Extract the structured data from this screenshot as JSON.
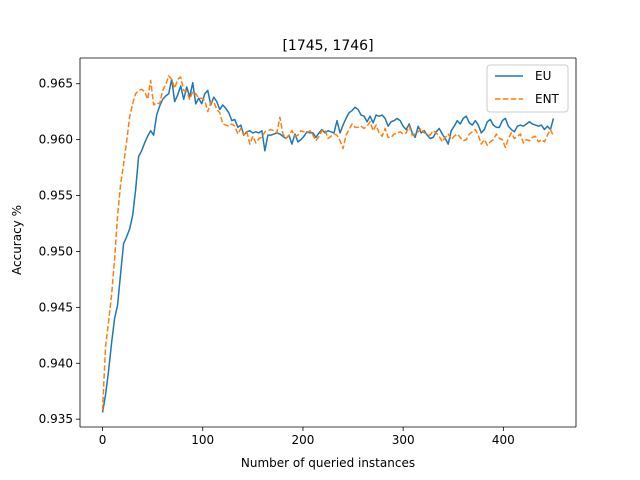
{
  "chart_data": {
    "type": "line",
    "title": "[1745, 1746]",
    "xlabel": "Number of queried instances",
    "ylabel": "Accuracy %",
    "xlim": [
      -22.5,
      472.5
    ],
    "ylim": [
      0.9343,
      0.9673
    ],
    "xticks": [
      0,
      100,
      200,
      300,
      400
    ],
    "xtick_labels": [
      "0",
      "100",
      "200",
      "300",
      "400"
    ],
    "yticks": [
      0.935,
      0.94,
      0.945,
      0.95,
      0.955,
      0.96,
      0.965
    ],
    "ytick_labels": [
      "0.935",
      "0.940",
      "0.945",
      "0.950",
      "0.955",
      "0.960",
      "0.965"
    ],
    "grid": false,
    "legend_position": "top-right",
    "series": [
      {
        "name": "EU",
        "color": "#1f77b4",
        "style": "solid",
        "x": [
          0,
          3,
          6,
          9,
          12,
          15,
          18,
          21,
          24,
          27,
          30,
          33,
          36,
          39,
          42,
          45,
          48,
          51,
          54,
          57,
          60,
          63,
          66,
          69,
          72,
          75,
          78,
          81,
          84,
          87,
          90,
          93,
          96,
          99,
          102,
          105,
          108,
          111,
          114,
          117,
          120,
          123,
          126,
          129,
          132,
          135,
          138,
          141,
          144,
          147,
          150,
          153,
          156,
          159,
          162,
          165,
          168,
          171,
          174,
          177,
          180,
          183,
          186,
          189,
          192,
          195,
          198,
          201,
          204,
          207,
          210,
          213,
          216,
          219,
          222,
          225,
          228,
          231,
          234,
          237,
          240,
          243,
          246,
          249,
          252,
          255,
          258,
          261,
          264,
          267,
          270,
          273,
          276,
          279,
          282,
          285,
          288,
          291,
          294,
          297,
          300,
          303,
          306,
          309,
          312,
          315,
          318,
          321,
          324,
          327,
          330,
          333,
          336,
          339,
          342,
          345,
          348,
          351,
          354,
          357,
          360,
          363,
          366,
          369,
          372,
          375,
          378,
          381,
          384,
          387,
          390,
          393,
          396,
          399,
          402,
          405,
          408,
          411,
          414,
          417,
          420,
          423,
          426,
          429,
          432,
          435,
          438,
          441,
          444,
          447,
          450
        ],
        "y": [
          0.9356,
          0.9372,
          0.9393,
          0.9418,
          0.944,
          0.9452,
          0.948,
          0.9507,
          0.9513,
          0.952,
          0.9532,
          0.9555,
          0.9585,
          0.959,
          0.9597,
          0.9603,
          0.9608,
          0.9604,
          0.9622,
          0.963,
          0.9636,
          0.9639,
          0.9641,
          0.9654,
          0.9634,
          0.964,
          0.9648,
          0.9636,
          0.9647,
          0.9638,
          0.9651,
          0.9632,
          0.9637,
          0.9632,
          0.9641,
          0.9644,
          0.9631,
          0.9638,
          0.9634,
          0.9627,
          0.9631,
          0.9628,
          0.9624,
          0.9617,
          0.9618,
          0.9611,
          0.9613,
          0.9604,
          0.9607,
          0.9608,
          0.9606,
          0.9607,
          0.9606,
          0.9608,
          0.959,
          0.9604,
          0.9604,
          0.9605,
          0.9606,
          0.9605,
          0.9603,
          0.9601,
          0.9604,
          0.9596,
          0.9605,
          0.9598,
          0.96,
          0.9603,
          0.9607,
          0.9606,
          0.9606,
          0.9602,
          0.9606,
          0.9609,
          0.9606,
          0.9608,
          0.9607,
          0.9606,
          0.9617,
          0.9606,
          0.9613,
          0.9619,
          0.9624,
          0.9626,
          0.9629,
          0.9627,
          0.9622,
          0.9621,
          0.9616,
          0.9621,
          0.9615,
          0.9622,
          0.9621,
          0.9622,
          0.9619,
          0.9612,
          0.9616,
          0.9617,
          0.9619,
          0.9617,
          0.9612,
          0.9609,
          0.9614,
          0.9606,
          0.9602,
          0.9612,
          0.9606,
          0.9608,
          0.9604,
          0.9601,
          0.9602,
          0.9607,
          0.961,
          0.9605,
          0.9601,
          0.9596,
          0.9608,
          0.9612,
          0.9617,
          0.9614,
          0.9619,
          0.9621,
          0.9615,
          0.9613,
          0.9617,
          0.9613,
          0.9606,
          0.9609,
          0.9616,
          0.9618,
          0.9613,
          0.9611,
          0.9611,
          0.9617,
          0.9619,
          0.9612,
          0.9609,
          0.9607,
          0.9612,
          0.9613,
          0.9612,
          0.9614,
          0.9616,
          0.9614,
          0.9613,
          0.9612,
          0.9613,
          0.9609,
          0.9612,
          0.9609,
          0.9619
        ],
        "x_note": "same x grid for both series"
      },
      {
        "name": "ENT",
        "color": "#ff7f0e",
        "style": "dashed",
        "x": [
          0,
          3,
          6,
          9,
          12,
          15,
          18,
          21,
          24,
          27,
          30,
          33,
          36,
          39,
          42,
          45,
          48,
          51,
          54,
          57,
          60,
          63,
          66,
          69,
          72,
          75,
          78,
          81,
          84,
          87,
          90,
          93,
          96,
          99,
          102,
          105,
          108,
          111,
          114,
          117,
          120,
          123,
          126,
          129,
          132,
          135,
          138,
          141,
          144,
          147,
          150,
          153,
          156,
          159,
          162,
          165,
          168,
          171,
          174,
          177,
          180,
          183,
          186,
          189,
          192,
          195,
          198,
          201,
          204,
          207,
          210,
          213,
          216,
          219,
          222,
          225,
          228,
          231,
          234,
          237,
          240,
          243,
          246,
          249,
          252,
          255,
          258,
          261,
          264,
          267,
          270,
          273,
          276,
          279,
          282,
          285,
          288,
          291,
          294,
          297,
          300,
          303,
          306,
          309,
          312,
          315,
          318,
          321,
          324,
          327,
          330,
          333,
          336,
          339,
          342,
          345,
          348,
          351,
          354,
          357,
          360,
          363,
          366,
          369,
          372,
          375,
          378,
          381,
          384,
          387,
          390,
          393,
          396,
          399,
          402,
          405,
          408,
          411,
          414,
          417,
          420,
          423,
          426,
          429,
          432,
          435,
          438,
          441,
          444,
          447,
          450
        ],
        "y": [
          0.9358,
          0.9415,
          0.9437,
          0.9461,
          0.9493,
          0.9532,
          0.956,
          0.9578,
          0.9598,
          0.962,
          0.9632,
          0.9641,
          0.9644,
          0.9645,
          0.9643,
          0.9636,
          0.9653,
          0.9631,
          0.9633,
          0.9632,
          0.9644,
          0.9649,
          0.9657,
          0.9654,
          0.9646,
          0.9654,
          0.9656,
          0.9644,
          0.9643,
          0.9636,
          0.9643,
          0.9641,
          0.9637,
          0.9637,
          0.9635,
          0.9625,
          0.9633,
          0.9634,
          0.9627,
          0.9624,
          0.9614,
          0.9613,
          0.9612,
          0.9614,
          0.9612,
          0.9605,
          0.961,
          0.9604,
          0.9607,
          0.9596,
          0.9603,
          0.9597,
          0.9601,
          0.9602,
          0.9607,
          0.9608,
          0.9609,
          0.9608,
          0.9606,
          0.962,
          0.9605,
          0.9601,
          0.9604,
          0.9608,
          0.9603,
          0.9604,
          0.9608,
          0.9607,
          0.9606,
          0.9608,
          0.9604,
          0.9599,
          0.9603,
          0.9608,
          0.9609,
          0.9601,
          0.9603,
          0.9605,
          0.9604,
          0.9599,
          0.9592,
          0.9604,
          0.9609,
          0.9614,
          0.9611,
          0.9611,
          0.9612,
          0.961,
          0.9612,
          0.9616,
          0.9608,
          0.9613,
          0.9606,
          0.9603,
          0.961,
          0.9602,
          0.9602,
          0.9605,
          0.9606,
          0.9607,
          0.9605,
          0.9606,
          0.9612,
          0.9604,
          0.9605,
          0.9607,
          0.961,
          0.9606,
          0.9605,
          0.9604,
          0.9608,
          0.9606,
          0.9603,
          0.9598,
          0.9602,
          0.9605,
          0.96,
          0.9603,
          0.9605,
          0.9602,
          0.9599,
          0.96,
          0.9605,
          0.9607,
          0.9609,
          0.9604,
          0.9596,
          0.96,
          0.9595,
          0.9598,
          0.96,
          0.9605,
          0.9601,
          0.96,
          0.9593,
          0.9601,
          0.9606,
          0.9601,
          0.9603,
          0.9605,
          0.9597,
          0.96,
          0.9599,
          0.9602,
          0.9603,
          0.9598,
          0.96,
          0.9598,
          0.9604,
          0.9609,
          0.9603
        ]
      }
    ]
  }
}
